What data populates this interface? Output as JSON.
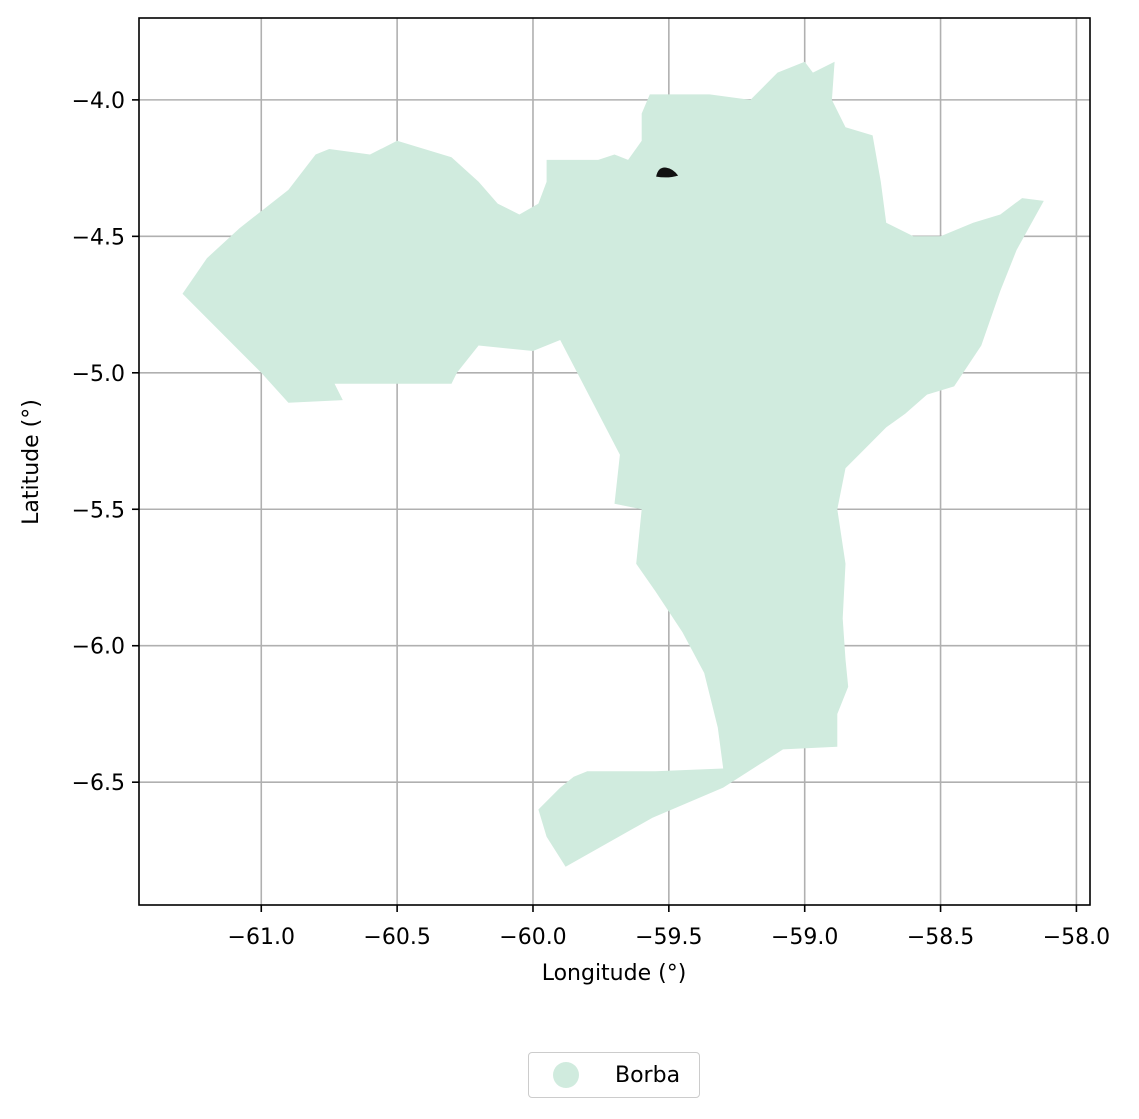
{
  "chart_data": {
    "type": "map",
    "xlabel": "Longitude (°)",
    "ylabel": "Latitude (°)",
    "xlim": [
      -61.45,
      -57.95
    ],
    "ylim": [
      -6.95,
      -3.7
    ],
    "xticks": [
      -61.0,
      -60.5,
      -60.0,
      -59.5,
      -59.0,
      -58.5,
      -58.0
    ],
    "yticks": [
      -4.0,
      -4.5,
      -5.0,
      -5.5,
      -6.0,
      -6.5
    ],
    "xtick_labels": [
      "−61.0",
      "−60.5",
      "−60.0",
      "−59.5",
      "−59.0",
      "−58.5",
      "−58.0"
    ],
    "ytick_labels": [
      "−4.0",
      "−4.5",
      "−5.0",
      "−5.5",
      "−6.0",
      "−6.5"
    ],
    "grid": true,
    "legend_placement": "bottom-center",
    "regions": [
      {
        "name": "Borba",
        "color": "#d0ebde",
        "outline": [
          [
            -61.29,
            -4.71
          ],
          [
            -61.2,
            -4.58
          ],
          [
            -61.08,
            -4.47
          ],
          [
            -60.9,
            -4.33
          ],
          [
            -60.8,
            -4.2
          ],
          [
            -60.75,
            -4.18
          ],
          [
            -60.6,
            -4.2
          ],
          [
            -60.5,
            -4.15
          ],
          [
            -60.4,
            -4.18
          ],
          [
            -60.3,
            -4.21
          ],
          [
            -60.2,
            -4.3
          ],
          [
            -60.13,
            -4.38
          ],
          [
            -60.05,
            -4.42
          ],
          [
            -59.98,
            -4.38
          ],
          [
            -59.95,
            -4.3
          ],
          [
            -59.95,
            -4.22
          ],
          [
            -59.76,
            -4.22
          ],
          [
            -59.7,
            -4.2
          ],
          [
            -59.65,
            -4.22
          ],
          [
            -59.6,
            -4.15
          ],
          [
            -59.6,
            -4.05
          ],
          [
            -59.57,
            -3.98
          ],
          [
            -59.35,
            -3.98
          ],
          [
            -59.2,
            -4.0
          ],
          [
            -59.1,
            -3.9
          ],
          [
            -59.0,
            -3.86
          ],
          [
            -58.97,
            -3.9
          ],
          [
            -58.89,
            -3.86
          ],
          [
            -58.9,
            -4.0
          ],
          [
            -58.85,
            -4.1
          ],
          [
            -58.75,
            -4.13
          ],
          [
            -58.72,
            -4.3
          ],
          [
            -58.7,
            -4.45
          ],
          [
            -58.6,
            -4.5
          ],
          [
            -58.5,
            -4.5
          ],
          [
            -58.38,
            -4.45
          ],
          [
            -58.28,
            -4.42
          ],
          [
            -58.2,
            -4.36
          ],
          [
            -58.12,
            -4.37
          ],
          [
            -58.22,
            -4.55
          ],
          [
            -58.28,
            -4.7
          ],
          [
            -58.35,
            -4.9
          ],
          [
            -58.45,
            -5.05
          ],
          [
            -58.55,
            -5.08
          ],
          [
            -58.63,
            -5.15
          ],
          [
            -58.7,
            -5.2
          ],
          [
            -58.8,
            -5.3
          ],
          [
            -58.85,
            -5.35
          ],
          [
            -58.88,
            -5.5
          ],
          [
            -58.85,
            -5.7
          ],
          [
            -58.86,
            -5.9
          ],
          [
            -58.85,
            -6.05
          ],
          [
            -58.84,
            -6.15
          ],
          [
            -58.88,
            -6.25
          ],
          [
            -58.88,
            -6.37
          ],
          [
            -59.08,
            -6.38
          ],
          [
            -59.3,
            -6.52
          ],
          [
            -59.56,
            -6.63
          ],
          [
            -59.88,
            -6.81
          ],
          [
            -59.95,
            -6.7
          ],
          [
            -59.98,
            -6.6
          ],
          [
            -59.9,
            -6.52
          ],
          [
            -59.85,
            -6.48
          ],
          [
            -59.8,
            -6.46
          ],
          [
            -59.55,
            -6.46
          ],
          [
            -59.3,
            -6.45
          ],
          [
            -59.32,
            -6.3
          ],
          [
            -59.37,
            -6.1
          ],
          [
            -59.45,
            -5.95
          ],
          [
            -59.55,
            -5.8
          ],
          [
            -59.62,
            -5.7
          ],
          [
            -59.6,
            -5.5
          ],
          [
            -59.7,
            -5.48
          ],
          [
            -59.68,
            -5.3
          ],
          [
            -59.9,
            -4.88
          ],
          [
            -60.0,
            -4.92
          ],
          [
            -60.2,
            -4.9
          ],
          [
            -60.28,
            -5.0
          ],
          [
            -60.3,
            -5.04
          ],
          [
            -60.73,
            -5.04
          ],
          [
            -60.7,
            -5.1
          ],
          [
            -60.9,
            -5.11
          ],
          [
            -61.0,
            -5.0
          ]
        ]
      }
    ],
    "point_markers": [
      [
        -59.51,
        -4.27
      ]
    ]
  },
  "legend": {
    "items": [
      {
        "label": "Borba",
        "color": "#d0ebde"
      }
    ]
  }
}
